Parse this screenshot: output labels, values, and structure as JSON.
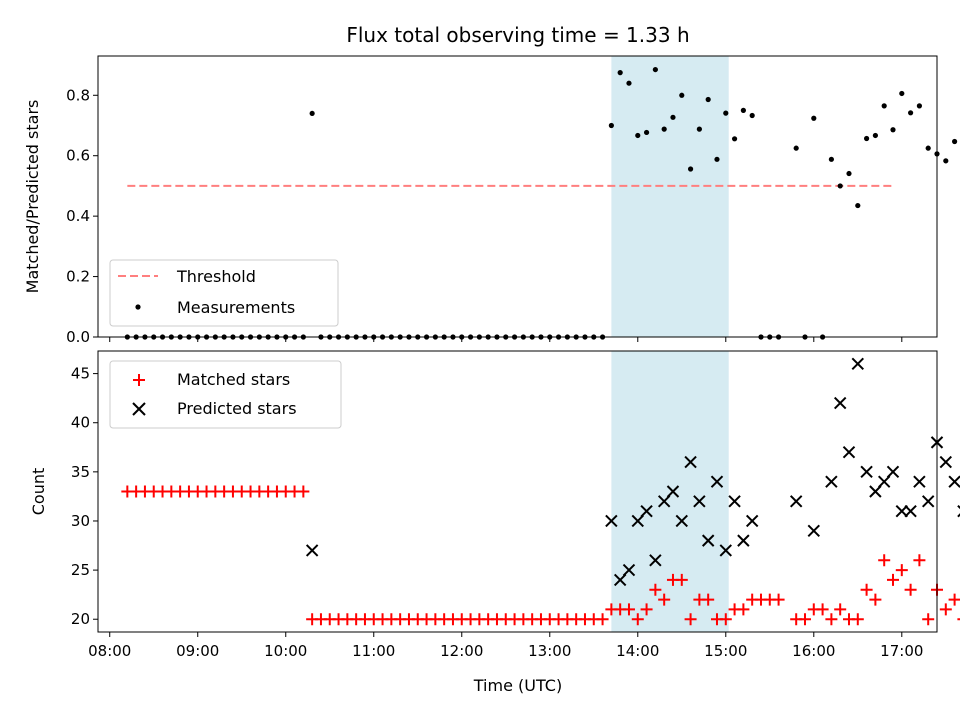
{
  "chart_data": [
    {
      "type": "scatter",
      "title": "Flux total observing time = 1.33 h",
      "xlabel": "",
      "ylabel": "Matched/Predicted stars",
      "xlim": [
        "07:52",
        "17:24"
      ],
      "ylim": [
        0,
        0.93
      ],
      "yticks": [
        0.0,
        0.2,
        0.4,
        0.6,
        0.8
      ],
      "ytick_labels": [
        "0.0",
        "0.2",
        "0.4",
        "0.6",
        "0.8"
      ],
      "highlight_span": [
        "13:42",
        "15:02"
      ],
      "highlight_color": "#add8e6",
      "legend": {
        "placement": "lower-left",
        "entries": [
          "Threshold",
          "Measurements"
        ]
      },
      "series": [
        {
          "name": "Threshold",
          "kind": "dashed-line",
          "color": "#ff7f7f",
          "x": [
            "08:12",
            "16:54"
          ],
          "y": [
            0.5,
            0.5
          ]
        },
        {
          "name": "Measurements",
          "kind": "points",
          "color": "#000000",
          "points": [
            [
              "08:12",
              0
            ],
            [
              "08:18",
              0
            ],
            [
              "08:24",
              0
            ],
            [
              "08:30",
              0
            ],
            [
              "08:36",
              0
            ],
            [
              "08:42",
              0
            ],
            [
              "08:48",
              0
            ],
            [
              "08:54",
              0
            ],
            [
              "09:00",
              0
            ],
            [
              "09:06",
              0
            ],
            [
              "09:12",
              0
            ],
            [
              "09:18",
              0
            ],
            [
              "09:24",
              0
            ],
            [
              "09:30",
              0
            ],
            [
              "09:36",
              0
            ],
            [
              "09:42",
              0
            ],
            [
              "09:48",
              0
            ],
            [
              "09:54",
              0
            ],
            [
              "10:00",
              0
            ],
            [
              "10:06",
              0
            ],
            [
              "10:12",
              0
            ],
            [
              "10:18",
              0.74
            ],
            [
              "10:24",
              0
            ],
            [
              "10:30",
              0
            ],
            [
              "10:36",
              0
            ],
            [
              "10:42",
              0
            ],
            [
              "10:48",
              0
            ],
            [
              "10:54",
              0
            ],
            [
              "11:00",
              0
            ],
            [
              "11:06",
              0
            ],
            [
              "11:12",
              0
            ],
            [
              "11:18",
              0
            ],
            [
              "11:24",
              0
            ],
            [
              "11:30",
              0
            ],
            [
              "11:36",
              0
            ],
            [
              "11:42",
              0
            ],
            [
              "11:48",
              0
            ],
            [
              "11:54",
              0
            ],
            [
              "12:00",
              0
            ],
            [
              "12:06",
              0
            ],
            [
              "12:12",
              0
            ],
            [
              "12:18",
              0
            ],
            [
              "12:24",
              0
            ],
            [
              "12:30",
              0
            ],
            [
              "12:36",
              0
            ],
            [
              "12:42",
              0
            ],
            [
              "12:48",
              0
            ],
            [
              "12:54",
              0
            ],
            [
              "13:00",
              0
            ],
            [
              "13:06",
              0
            ],
            [
              "13:12",
              0
            ],
            [
              "13:18",
              0
            ],
            [
              "13:24",
              0
            ],
            [
              "13:30",
              0
            ],
            [
              "13:36",
              0
            ],
            [
              "13:42",
              0.7
            ],
            [
              "13:48",
              0.875
            ],
            [
              "13:54",
              0.84
            ],
            [
              "14:00",
              0.667
            ],
            [
              "14:06",
              0.677
            ],
            [
              "14:12",
              0.885
            ],
            [
              "14:18",
              0.688
            ],
            [
              "14:24",
              0.727
            ],
            [
              "14:30",
              0.8
            ],
            [
              "14:36",
              0.556
            ],
            [
              "14:42",
              0.688
            ],
            [
              "14:48",
              0.786
            ],
            [
              "14:54",
              0.588
            ],
            [
              "15:00",
              0.741
            ],
            [
              "15:06",
              0.656
            ],
            [
              "15:12",
              0.75
            ],
            [
              "15:18",
              0.733
            ],
            [
              "15:24",
              0
            ],
            [
              "15:30",
              0
            ],
            [
              "15:36",
              0
            ],
            [
              "15:48",
              0.625
            ],
            [
              "15:54",
              0
            ],
            [
              "16:00",
              0.724
            ],
            [
              "16:06",
              0
            ],
            [
              "16:12",
              0.588
            ],
            [
              "16:18",
              0.5
            ],
            [
              "16:24",
              0.541
            ],
            [
              "16:30",
              0.435
            ],
            [
              "16:36",
              0.657
            ],
            [
              "16:42",
              0.667
            ],
            [
              "16:48",
              0.765
            ],
            [
              "16:54",
              0.686
            ],
            [
              "17:00",
              0.806
            ],
            [
              "17:06",
              0.742
            ],
            [
              "17:12",
              0.765
            ],
            [
              "17:18",
              0.625
            ],
            [
              "17:24",
              0.606
            ],
            [
              "17:30",
              0.583
            ],
            [
              "17:36",
              0.647
            ],
            [
              "17:42",
              0.645
            ]
          ]
        }
      ]
    },
    {
      "type": "scatter",
      "title": "",
      "xlabel": "Time (UTC)",
      "ylabel": "Count",
      "xlim": [
        "07:52",
        "17:24"
      ],
      "ylim": [
        18.7,
        47.3
      ],
      "xtick_labels": [
        "08:00",
        "09:00",
        "10:00",
        "11:00",
        "12:00",
        "13:00",
        "14:00",
        "15:00",
        "16:00",
        "17:00"
      ],
      "yticks": [
        20,
        25,
        30,
        35,
        40,
        45
      ],
      "ytick_labels": [
        "20",
        "25",
        "30",
        "35",
        "40",
        "45"
      ],
      "highlight_span": [
        "13:42",
        "15:02"
      ],
      "highlight_color": "#add8e6",
      "legend": {
        "placement": "upper-left",
        "entries": [
          "Matched stars",
          "Predicted stars"
        ]
      },
      "series": [
        {
          "name": "Matched stars",
          "marker": "plus",
          "color": "#ff0000",
          "points": [
            [
              "08:12",
              33
            ],
            [
              "08:18",
              33
            ],
            [
              "08:24",
              33
            ],
            [
              "08:30",
              33
            ],
            [
              "08:36",
              33
            ],
            [
              "08:42",
              33
            ],
            [
              "08:48",
              33
            ],
            [
              "08:54",
              33
            ],
            [
              "09:00",
              33
            ],
            [
              "09:06",
              33
            ],
            [
              "09:12",
              33
            ],
            [
              "09:18",
              33
            ],
            [
              "09:24",
              33
            ],
            [
              "09:30",
              33
            ],
            [
              "09:36",
              33
            ],
            [
              "09:42",
              33
            ],
            [
              "09:48",
              33
            ],
            [
              "09:54",
              33
            ],
            [
              "10:00",
              33
            ],
            [
              "10:06",
              33
            ],
            [
              "10:12",
              33
            ],
            [
              "10:18",
              20
            ],
            [
              "10:24",
              20
            ],
            [
              "10:30",
              20
            ],
            [
              "10:36",
              20
            ],
            [
              "10:42",
              20
            ],
            [
              "10:48",
              20
            ],
            [
              "10:54",
              20
            ],
            [
              "11:00",
              20
            ],
            [
              "11:06",
              20
            ],
            [
              "11:12",
              20
            ],
            [
              "11:18",
              20
            ],
            [
              "11:24",
              20
            ],
            [
              "11:30",
              20
            ],
            [
              "11:36",
              20
            ],
            [
              "11:42",
              20
            ],
            [
              "11:48",
              20
            ],
            [
              "11:54",
              20
            ],
            [
              "12:00",
              20
            ],
            [
              "12:06",
              20
            ],
            [
              "12:12",
              20
            ],
            [
              "12:18",
              20
            ],
            [
              "12:24",
              20
            ],
            [
              "12:30",
              20
            ],
            [
              "12:36",
              20
            ],
            [
              "12:42",
              20
            ],
            [
              "12:48",
              20
            ],
            [
              "12:54",
              20
            ],
            [
              "13:00",
              20
            ],
            [
              "13:06",
              20
            ],
            [
              "13:12",
              20
            ],
            [
              "13:18",
              20
            ],
            [
              "13:24",
              20
            ],
            [
              "13:30",
              20
            ],
            [
              "13:36",
              20
            ],
            [
              "13:42",
              21
            ],
            [
              "13:48",
              21
            ],
            [
              "13:54",
              21
            ],
            [
              "14:00",
              20
            ],
            [
              "14:06",
              21
            ],
            [
              "14:12",
              23
            ],
            [
              "14:18",
              22
            ],
            [
              "14:24",
              24
            ],
            [
              "14:30",
              24
            ],
            [
              "14:36",
              20
            ],
            [
              "14:42",
              22
            ],
            [
              "14:48",
              22
            ],
            [
              "14:54",
              20
            ],
            [
              "15:00",
              20
            ],
            [
              "15:06",
              21
            ],
            [
              "15:12",
              21
            ],
            [
              "15:18",
              22
            ],
            [
              "15:24",
              22
            ],
            [
              "15:30",
              22
            ],
            [
              "15:36",
              22
            ],
            [
              "15:48",
              20
            ],
            [
              "15:54",
              20
            ],
            [
              "16:00",
              21
            ],
            [
              "16:06",
              21
            ],
            [
              "16:12",
              20
            ],
            [
              "16:18",
              21
            ],
            [
              "16:24",
              20
            ],
            [
              "16:30",
              20
            ],
            [
              "16:36",
              23
            ],
            [
              "16:42",
              22
            ],
            [
              "16:48",
              26
            ],
            [
              "16:54",
              24
            ],
            [
              "17:00",
              25
            ],
            [
              "17:06",
              23
            ],
            [
              "17:12",
              26
            ],
            [
              "17:18",
              20
            ],
            [
              "17:24",
              23
            ],
            [
              "17:30",
              21
            ],
            [
              "17:36",
              22
            ],
            [
              "17:42",
              20
            ]
          ]
        },
        {
          "name": "Predicted stars",
          "marker": "x",
          "color": "#000000",
          "points": [
            [
              "10:18",
              27
            ],
            [
              "13:42",
              30
            ],
            [
              "13:48",
              24
            ],
            [
              "13:54",
              25
            ],
            [
              "14:00",
              30
            ],
            [
              "14:06",
              31
            ],
            [
              "14:12",
              26
            ],
            [
              "14:18",
              32
            ],
            [
              "14:24",
              33
            ],
            [
              "14:30",
              30
            ],
            [
              "14:36",
              36
            ],
            [
              "14:42",
              32
            ],
            [
              "14:48",
              28
            ],
            [
              "14:54",
              34
            ],
            [
              "15:00",
              27
            ],
            [
              "15:06",
              32
            ],
            [
              "15:12",
              28
            ],
            [
              "15:18",
              30
            ],
            [
              "15:48",
              32
            ],
            [
              "16:00",
              29
            ],
            [
              "16:12",
              34
            ],
            [
              "16:18",
              42
            ],
            [
              "16:24",
              37
            ],
            [
              "16:30",
              46
            ],
            [
              "16:36",
              35
            ],
            [
              "16:42",
              33
            ],
            [
              "16:48",
              34
            ],
            [
              "16:54",
              35
            ],
            [
              "17:00",
              31
            ],
            [
              "17:06",
              31
            ],
            [
              "17:12",
              34
            ],
            [
              "17:18",
              32
            ],
            [
              "17:24",
              38
            ],
            [
              "17:30",
              36
            ],
            [
              "17:36",
              34
            ],
            [
              "17:42",
              31
            ]
          ]
        }
      ]
    }
  ]
}
